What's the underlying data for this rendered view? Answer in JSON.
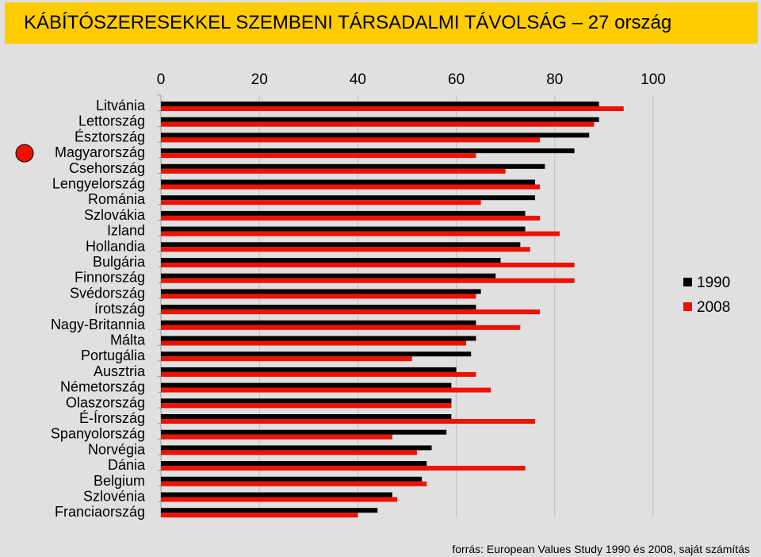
{
  "title": "KÁBÍTÓSZERESEKKEL SZEMBENI TÁRSADALMI TÁVOLSÁG – 27 ország",
  "source": "forrás: European Values Study 1990 és 2008, saját számítás",
  "colors": {
    "title_bg": "#ffcc00",
    "background": "#e0e0e0",
    "s1990": "#000000",
    "s2008": "#ee1100",
    "highlight_marker": "#ee1100"
  },
  "highlight_marker": {
    "category": "Magyarország",
    "shape": "red-circle"
  },
  "chart_data": {
    "type": "bar",
    "orientation": "horizontal",
    "x_tick_position": "top",
    "xlim": [
      0,
      100
    ],
    "x_ticks": [
      0,
      20,
      40,
      60,
      80,
      100
    ],
    "grid": true,
    "legend_position": "right",
    "categories": [
      "Litvánia",
      "Lettország",
      "Észtország",
      "Magyarország",
      "Csehország",
      "Lengyelország",
      "Románia",
      "Szlovákia",
      "Izland",
      "Hollandia",
      "Bulgária",
      "Finnország",
      "Svédország",
      "írotszág",
      "Nagy-Britannia",
      "Málta",
      "Portugália",
      "Ausztria",
      "Németország",
      "Olaszország",
      "É-Írország",
      "Spanyolország",
      "Norvégia",
      "Dánia",
      "Belgium",
      "Szlovénia",
      "Franciaország"
    ],
    "series": [
      {
        "name": "1990",
        "values": [
          89,
          89,
          87,
          84,
          78,
          76,
          76,
          74,
          74,
          73,
          69,
          68,
          65,
          64,
          64,
          64,
          63,
          60,
          59,
          59,
          59,
          58,
          55,
          54,
          53,
          47,
          44
        ]
      },
      {
        "name": "2008",
        "values": [
          94,
          88,
          77,
          64,
          70,
          77,
          65,
          77,
          81,
          75,
          84,
          84,
          64,
          77,
          73,
          62,
          51,
          64,
          67,
          59,
          76,
          47,
          52,
          74,
          54,
          48,
          40
        ]
      }
    ]
  }
}
